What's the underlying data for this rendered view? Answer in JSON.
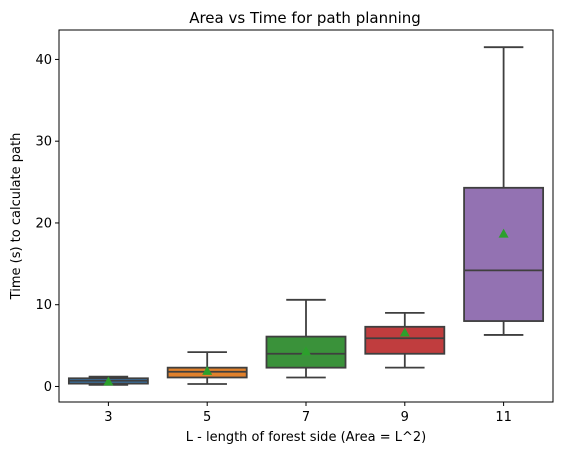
{
  "chart_data": {
    "type": "box",
    "title": "Area vs Time for path planning",
    "xlabel": "L - length of forest side (Area = L^2)",
    "ylabel": "Time (s) to calculate path",
    "ylim": [
      -1.9,
      43.6
    ],
    "yticks": [
      0,
      10,
      20,
      30,
      40
    ],
    "grid": false,
    "categories": [
      "3",
      "5",
      "7",
      "9",
      "11"
    ],
    "boxes": [
      {
        "category": "3",
        "color": "#3a73a8",
        "whisker_low": 0.2,
        "q1": 0.35,
        "median": 0.7,
        "q3": 1.0,
        "whisker_high": 1.2,
        "mean": 0.6
      },
      {
        "category": "5",
        "color": "#e1812c",
        "whisker_low": 0.3,
        "q1": 1.1,
        "median": 1.8,
        "q3": 2.3,
        "whisker_high": 4.2,
        "mean": 1.9
      },
      {
        "category": "7",
        "color": "#3a923a",
        "whisker_low": 1.1,
        "q1": 2.3,
        "median": 4.0,
        "q3": 6.1,
        "whisker_high": 10.6,
        "mean": 4.3
      },
      {
        "category": "9",
        "color": "#c03d3e",
        "whisker_low": 2.3,
        "q1": 4.0,
        "median": 5.9,
        "q3": 7.3,
        "whisker_high": 9.0,
        "mean": 6.6
      },
      {
        "category": "11",
        "color": "#9372b2",
        "whisker_low": 6.3,
        "q1": 8.0,
        "median": 14.2,
        "q3": 24.3,
        "whisker_high": 41.5,
        "mean": 18.7
      }
    ],
    "mean_marker_color": "#2ca02c",
    "line_color": "#3f3f3f"
  }
}
